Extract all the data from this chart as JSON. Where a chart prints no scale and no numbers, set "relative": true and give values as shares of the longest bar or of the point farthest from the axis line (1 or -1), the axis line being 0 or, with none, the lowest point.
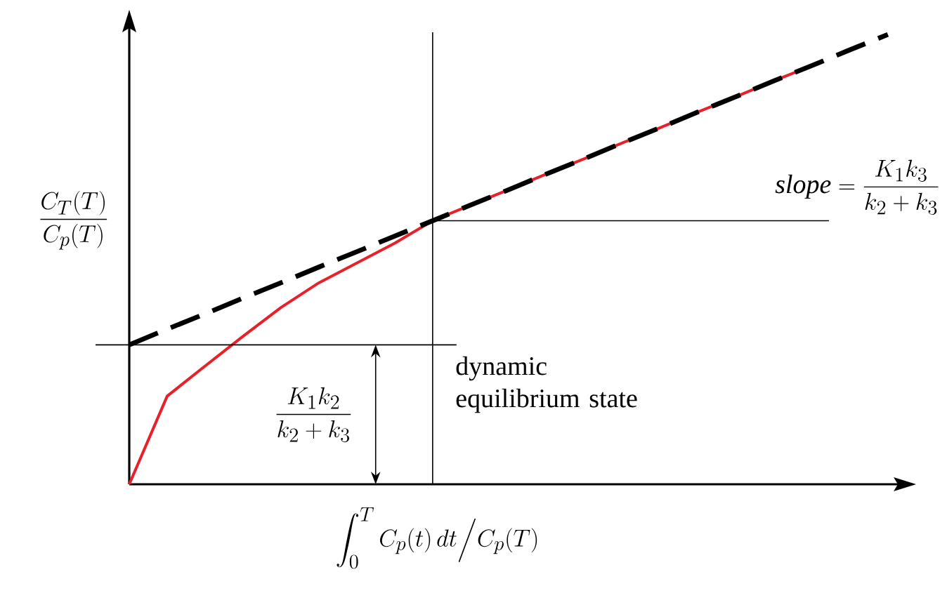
{
  "chart_data": {
    "type": "line",
    "relative": true,
    "xlabel": "\\int_0^T C_p(t)\\,dt \\Big/ C_p(T)",
    "ylabel": "\\frac{C_T(T)}{C_p(T)}",
    "categories": [
      null,
      null,
      null,
      null,
      null,
      null,
      null,
      null,
      null,
      null,
      null,
      null,
      null,
      null,
      null,
      null,
      null,
      null,
      null,
      null,
      null
    ],
    "series": [
      {
        "color": "#e8202a",
        "line_style": "solid",
        "values": [
          0,
          0.196,
          0.263,
          0.329,
          0.393,
          0.448,
          0.492,
          0.536,
          0.586,
          0.621,
          0.655,
          0.69,
          0.724,
          0.759,
          0.793,
          0.828,
          0.862,
          0.897,
          0.931,
          null,
          null
        ]
      },
      {
        "color": "#000000",
        "line_style": "dashed",
        "values": [
          0.31,
          0.345,
          0.379,
          0.414,
          0.448,
          0.483,
          0.517,
          0.552,
          0.586,
          0.621,
          0.655,
          0.69,
          0.724,
          0.759,
          0.793,
          0.828,
          0.862,
          0.897,
          0.931,
          0.966,
          1.0
        ]
      }
    ],
    "ref_lines": [
      {
        "axis": "y",
        "value": 0.31
      }
    ],
    "annotations": [
      "\\mathit{slope}=\\frac{K_1k_3}{k_2+k_3}",
      "\\frac{K_1k_2}{k_2+k_3}",
      "dynamic equilibrium state"
    ]
  }
}
